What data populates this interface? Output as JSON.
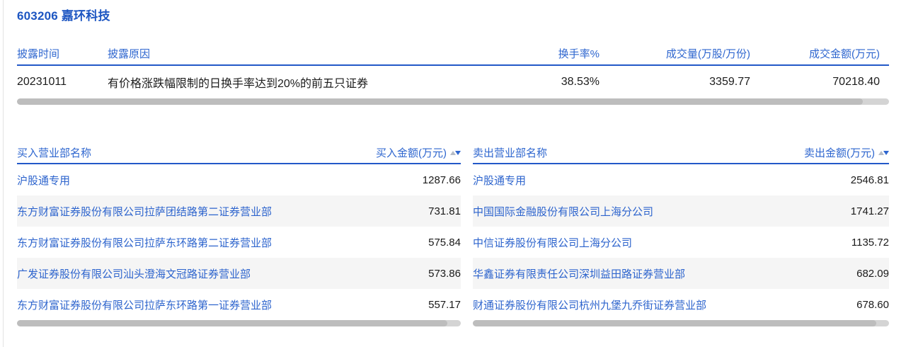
{
  "page": {
    "title": "603206 嘉环科技"
  },
  "colors": {
    "title_blue": "#1d56c2",
    "link_blue": "#2d64cd",
    "header_blue": "#2e66cf",
    "header_rule_blue": "#2359c8",
    "row_stripe_gray": "#f5f5f5",
    "scrollbar_gray": "#bdbdbd",
    "sort_inactive_gray": "#b6bcc6"
  },
  "summary_table": {
    "headers": [
      "披露时间",
      "披露原因",
      "换手率%",
      "成交量(万股/万份)",
      "成交金额(万元)"
    ],
    "row": {
      "date": "20231011",
      "reason": "有价格涨跌幅限制的日换手率达到20%的前五只证券",
      "turnover": "38.53%",
      "volume": "3359.77",
      "amount": "70218.40"
    }
  },
  "buy_table": {
    "name_header": "买入营业部名称",
    "amount_header": "买入金额(万元)",
    "sort_icon": "sort-asc-desc",
    "rows": [
      {
        "name": "沪股通专用",
        "amount": "1287.66"
      },
      {
        "name": "东方财富证券股份有限公司拉萨团结路第二证券营业部",
        "amount": "731.81"
      },
      {
        "name": "东方财富证券股份有限公司拉萨东环路第二证券营业部",
        "amount": "575.84"
      },
      {
        "name": "广发证券股份有限公司汕头澄海文冠路证券营业部",
        "amount": "573.86"
      },
      {
        "name": "东方财富证券股份有限公司拉萨东环路第一证券营业部",
        "amount": "557.17"
      }
    ]
  },
  "sell_table": {
    "name_header": "卖出营业部名称",
    "amount_header": "卖出金额(万元)",
    "sort_icon": "sort-asc-desc",
    "rows": [
      {
        "name": "沪股通专用",
        "amount": "2546.81"
      },
      {
        "name": "中国国际金融股份有限公司上海分公司",
        "amount": "1741.27"
      },
      {
        "name": "中信证券股份有限公司上海分公司",
        "amount": "1135.72"
      },
      {
        "name": "华鑫证券有限责任公司深圳益田路证券营业部",
        "amount": "682.09"
      },
      {
        "name": "财通证券股份有限公司杭州九堡九乔街证券营业部",
        "amount": "678.60"
      }
    ]
  }
}
